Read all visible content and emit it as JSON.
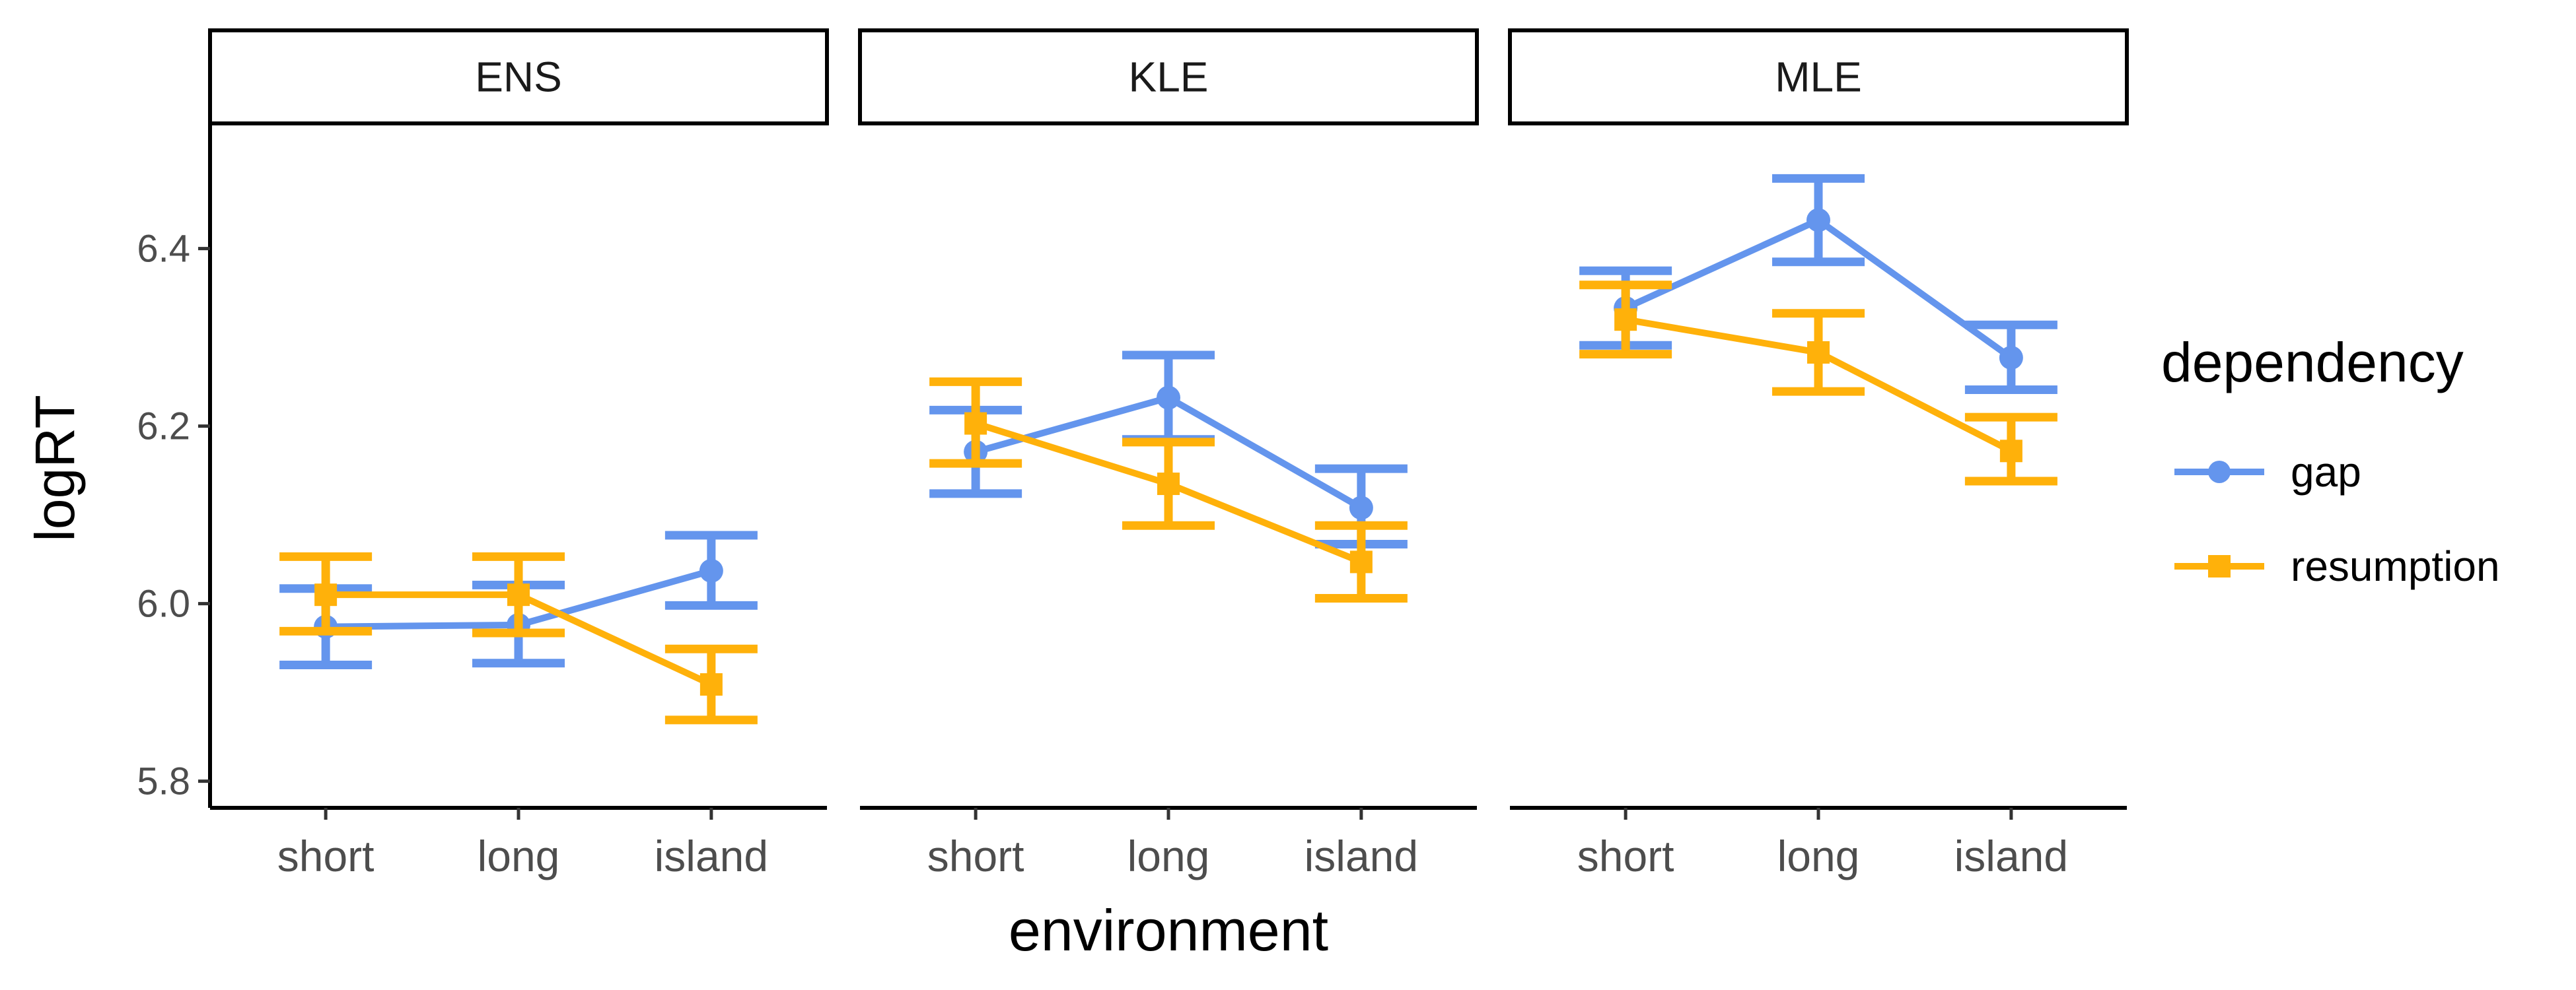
{
  "chart_data": {
    "type": "line",
    "xlabel": "environment",
    "ylabel": "logRT",
    "ylim": [
      5.77,
      6.535
    ],
    "yticks": [
      5.8,
      6.0,
      6.2,
      6.4
    ],
    "yticklabels": [
      "5.8",
      "6.0",
      "6.2",
      "6.4"
    ],
    "categories": [
      "short",
      "long",
      "island"
    ],
    "grid": false,
    "legend": {
      "title": "dependency",
      "placement": "right",
      "entries": [
        "gap",
        "resumption"
      ]
    },
    "series_styles": [
      {
        "name": "gap",
        "color": "#6495ED",
        "marker": "circle"
      },
      {
        "name": "resumption",
        "color": "#FFB10A",
        "marker": "square"
      }
    ],
    "facets": [
      {
        "label": "ENS",
        "series": [
          {
            "name": "gap",
            "values": [
              5.974,
              5.976,
              6.037
            ],
            "lower": [
              5.931,
              5.933,
              5.998
            ],
            "upper": [
              6.017,
              6.021,
              6.077
            ]
          },
          {
            "name": "resumption",
            "values": [
              6.01,
              6.01,
              5.909
            ],
            "lower": [
              5.969,
              5.967,
              5.869
            ],
            "upper": [
              6.053,
              6.053,
              5.949
            ]
          }
        ]
      },
      {
        "label": "KLE",
        "series": [
          {
            "name": "gap",
            "values": [
              6.171,
              6.232,
              6.108
            ],
            "lower": [
              6.124,
              6.185,
              6.067
            ],
            "upper": [
              6.218,
              6.28,
              6.152
            ]
          },
          {
            "name": "resumption",
            "values": [
              6.203,
              6.135,
              6.047
            ],
            "lower": [
              6.158,
              6.088,
              6.006
            ],
            "upper": [
              6.25,
              6.182,
              6.088
            ]
          }
        ]
      },
      {
        "label": "MLE",
        "series": [
          {
            "name": "gap",
            "values": [
              6.333,
              6.432,
              6.277
            ],
            "lower": [
              6.291,
              6.385,
              6.241
            ],
            "upper": [
              6.375,
              6.479,
              6.314
            ]
          },
          {
            "name": "resumption",
            "values": [
              6.32,
              6.283,
              6.172
            ],
            "lower": [
              6.281,
              6.239,
              6.138
            ],
            "upper": [
              6.359,
              6.327,
              6.21
            ]
          }
        ]
      }
    ]
  }
}
